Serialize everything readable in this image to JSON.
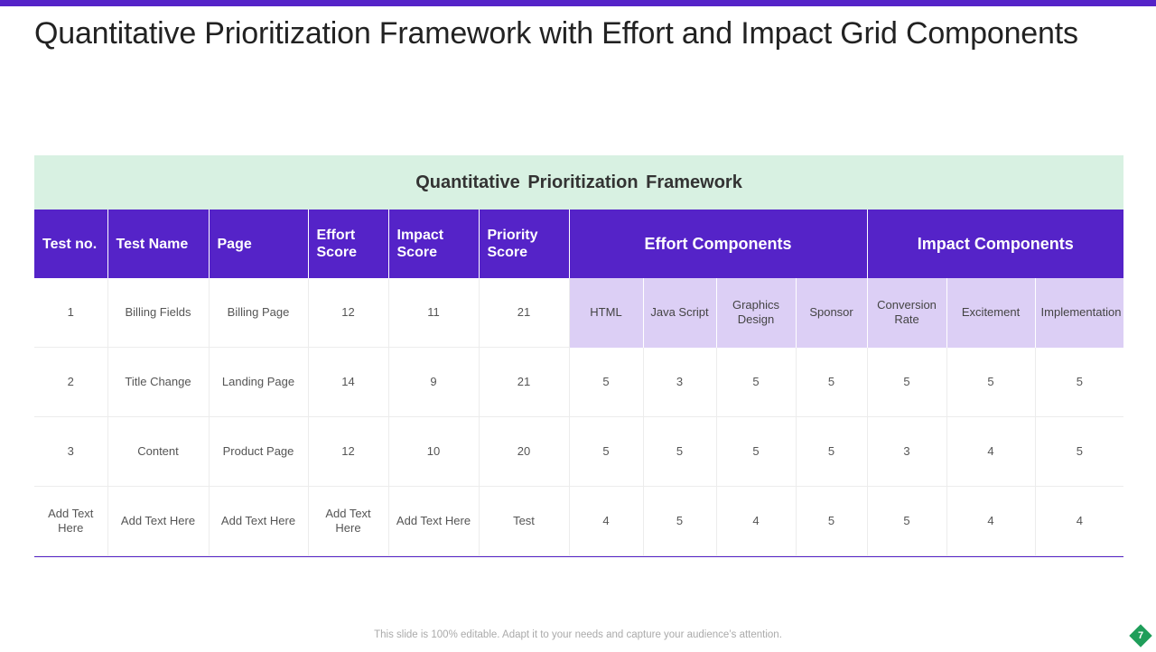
{
  "slide": {
    "title": "Quantitative Prioritization Framework with Effort and Impact Grid Components",
    "footer": "This slide is 100% editable. Adapt it to your needs and capture your audience’s attention.",
    "page_number": "7"
  },
  "framework": {
    "title": "Quantitative Prioritization Framework",
    "headers": [
      "Test no.",
      "Test Name",
      "Page",
      "Effort Score",
      "Impact Score",
      "Priority Score"
    ],
    "effort_group": "Effort Components",
    "impact_group": "Impact Components",
    "effort_subheaders": [
      "HTML",
      "Java Script",
      "Graphics Design",
      "Sponsor"
    ],
    "impact_subheaders": [
      "Conversion Rate",
      "Excitement",
      "Implementation"
    ],
    "first_row": [
      "1",
      "Billing Fields",
      "Billing Page",
      "12",
      "11",
      "21"
    ],
    "rows": [
      {
        "cells": [
          "2",
          "Title Change",
          "Landing Page",
          "14",
          "9",
          "21"
        ],
        "effort": [
          "5",
          "3",
          "5",
          "5"
        ],
        "impact": [
          "5",
          "5",
          "5"
        ]
      },
      {
        "cells": [
          "3",
          "Content",
          "Product Page",
          "12",
          "10",
          "20"
        ],
        "effort": [
          "5",
          "5",
          "5",
          "5"
        ],
        "impact": [
          "3",
          "4",
          "5"
        ]
      },
      {
        "cells": [
          "Add Text Here",
          "Add Text Here",
          "Add Text Here",
          "Add Text Here",
          "Add Text Here",
          "Test"
        ],
        "effort": [
          "4",
          "5",
          "4",
          "5"
        ],
        "impact": [
          "5",
          "4",
          "4"
        ]
      }
    ]
  },
  "colors": {
    "accent": "#5523c8",
    "banner": "#d8f1e2",
    "subheader": "#dccff5",
    "badge": "#1f9e5a"
  }
}
